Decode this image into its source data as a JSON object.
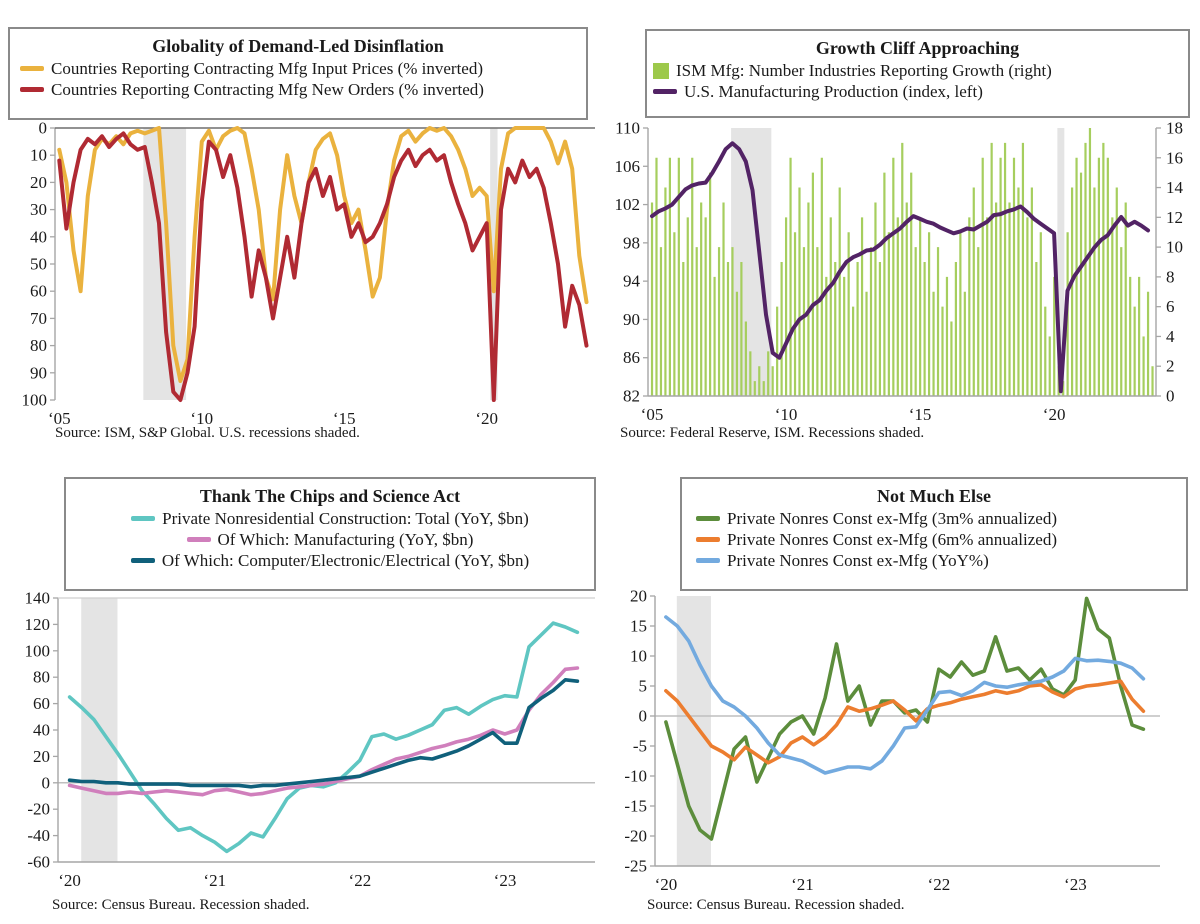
{
  "page": {
    "background": "#FFFFFF",
    "recession_shade_color": "#E4E4E4",
    "axis_color": "#A6A6A6",
    "zero_line_color": "#BFBFBF"
  },
  "chart_data": [
    {
      "type": "line",
      "title": "Globality of Demand-Led Disinflation",
      "source": "Source: ISM, S&P Global. U.S. recessions shaded.",
      "inverted_y": true,
      "xlim": [
        2004.85,
        2023.8
      ],
      "ylim": [
        0,
        100
      ],
      "yticks": [
        0,
        10,
        20,
        30,
        40,
        50,
        60,
        70,
        80,
        90,
        100
      ],
      "xticks": [
        {
          "x": 2005,
          "label": "‘05"
        },
        {
          "x": 2010,
          "label": "‘10"
        },
        {
          "x": 2015,
          "label": "‘15"
        },
        {
          "x": 2020,
          "label": "‘20"
        }
      ],
      "recessions": [
        [
          2007.95,
          2009.45
        ],
        [
          2020.12,
          2020.38
        ]
      ],
      "grid": false,
      "legend_position": "top",
      "legend": [
        {
          "label": "Countries Reporting Contracting Mfg Input Prices (% inverted)",
          "color": "#EAB23E",
          "swatch": "line"
        },
        {
          "label": "Countries Reporting Contracting Mfg New Orders (% inverted)",
          "color": "#B02A33",
          "swatch": "line"
        }
      ],
      "series": [
        {
          "name": "Contracting Mfg Input Prices (% inverted)",
          "type": "line",
          "color": "#EAB23E",
          "width": 4,
          "x_start": 2005.0,
          "x_step": 0.25,
          "values": [
            8,
            20,
            45,
            60,
            25,
            8,
            4,
            6,
            3,
            6,
            2,
            1,
            2,
            1,
            0,
            35,
            80,
            93,
            85,
            40,
            5,
            1,
            8,
            3,
            1,
            0,
            2,
            15,
            30,
            55,
            63,
            30,
            10,
            25,
            35,
            20,
            8,
            4,
            2,
            10,
            25,
            35,
            30,
            45,
            62,
            55,
            30,
            12,
            3,
            1,
            5,
            2,
            0,
            1,
            0,
            3,
            8,
            15,
            25,
            22,
            25,
            60,
            15,
            2,
            0,
            0,
            0,
            0,
            0,
            5,
            13,
            5,
            15,
            47,
            64
          ]
        },
        {
          "name": "Contracting Mfg New Orders (% inverted)",
          "type": "line",
          "color": "#B02A33",
          "width": 4,
          "x_start": 2005.0,
          "x_step": 0.25,
          "values": [
            12,
            37,
            20,
            8,
            4,
            6,
            3,
            7,
            4,
            2,
            6,
            8,
            7,
            20,
            35,
            75,
            97,
            100,
            90,
            73,
            27,
            5,
            8,
            18,
            10,
            22,
            40,
            62,
            45,
            55,
            70,
            55,
            40,
            55,
            35,
            20,
            15,
            25,
            18,
            30,
            28,
            40,
            35,
            42,
            40,
            35,
            28,
            18,
            12,
            8,
            14,
            10,
            8,
            12,
            10,
            20,
            28,
            35,
            45,
            40,
            35,
            100,
            30,
            15,
            20,
            12,
            18,
            15,
            22,
            35,
            50,
            73,
            58,
            65,
            80
          ]
        }
      ]
    },
    {
      "type": "bar+line",
      "title": "Growth Cliff Approaching",
      "source": "Source: Federal Reserve, ISM. Recessions shaded.",
      "inverted_y": false,
      "xlim": [
        2004.85,
        2023.8
      ],
      "ylim": [
        82,
        110
      ],
      "ylim_right": [
        0,
        18
      ],
      "yticks": [
        82,
        86,
        90,
        94,
        98,
        102,
        106,
        110
      ],
      "yticks_right": [
        0,
        2,
        4,
        6,
        8,
        10,
        12,
        14,
        16,
        18
      ],
      "xticks": [
        {
          "x": 2005,
          "label": "‘05"
        },
        {
          "x": 2010,
          "label": "‘10"
        },
        {
          "x": 2015,
          "label": "‘15"
        },
        {
          "x": 2020,
          "label": "‘20"
        }
      ],
      "recessions": [
        [
          2007.95,
          2009.45
        ],
        [
          2020.12,
          2020.38
        ]
      ],
      "grid": false,
      "legend_position": "top",
      "legend": [
        {
          "label": "ISM Mfg: Number Industries Reporting Growth (right)",
          "color": "#9DC94B",
          "swatch": "square"
        },
        {
          "label": "U.S. Manufacturing Production (index, left)",
          "color": "#522365",
          "swatch": "line"
        }
      ],
      "series": [
        {
          "name": "ISM Mfg: Number Industries Reporting Growth",
          "type": "bar",
          "axis": "right",
          "color": "#A6CE5E",
          "width": 2.2,
          "x_start": 2005.0,
          "x_step": 0.1667,
          "values": [
            13,
            16,
            10,
            14,
            16,
            11,
            16,
            9,
            12,
            16,
            10,
            13,
            12,
            15,
            8,
            10,
            13,
            9,
            10,
            7,
            9,
            5,
            3,
            1,
            2,
            1,
            3,
            2,
            6,
            9,
            12,
            16,
            11,
            14,
            10,
            13,
            15,
            10,
            16,
            8,
            12,
            9,
            14,
            8,
            11,
            6,
            9,
            12,
            7,
            10,
            13,
            9,
            15,
            11,
            16,
            12,
            17,
            13,
            15,
            10,
            12,
            9,
            11,
            7,
            10,
            6,
            8,
            5,
            9,
            11,
            7,
            12,
            14,
            10,
            16,
            12,
            17,
            13,
            16,
            17,
            13,
            16,
            14,
            17,
            12,
            14,
            9,
            11,
            6,
            4,
            8,
            2,
            1,
            11,
            14,
            16,
            15,
            17,
            18,
            14,
            16,
            17,
            16,
            12,
            14,
            10,
            13,
            8,
            6,
            8,
            4,
            7,
            2
          ]
        },
        {
          "name": "U.S. Manufacturing Production (index)",
          "type": "line",
          "axis": "left",
          "color": "#522365",
          "width": 4,
          "x_start": 2005.0,
          "x_step": 0.25,
          "values": [
            100.8,
            101.3,
            101.6,
            102,
            102.8,
            103.6,
            104,
            104.2,
            104.3,
            105.3,
            106.5,
            107.8,
            108.4,
            107.8,
            106.5,
            103.5,
            97,
            90.5,
            86.5,
            86,
            87.5,
            89,
            90,
            90.5,
            91.5,
            92,
            93,
            93.8,
            95,
            96,
            96.5,
            96.8,
            97.2,
            97.3,
            97.8,
            98.5,
            99,
            99.5,
            100.2,
            100.8,
            100.5,
            100.2,
            100,
            99.6,
            99.3,
            99,
            99.2,
            99.5,
            99.4,
            99.8,
            100.2,
            100.9,
            101,
            101.3,
            101.5,
            101.8,
            101.2,
            100.5,
            100,
            99.5,
            99,
            82.5,
            93,
            94.5,
            95.5,
            96.5,
            97.5,
            98.3,
            98.8,
            99.8,
            100.7,
            99.8,
            100.2,
            99.8,
            99.3
          ]
        }
      ]
    },
    {
      "type": "line",
      "title": "Thank The Chips and Science Act",
      "source": "Source: Census Bureau. Recession shaded.",
      "inverted_y": false,
      "xlim": [
        2019.92,
        2023.62
      ],
      "ylim": [
        -60,
        140
      ],
      "yticks": [
        -60,
        -40,
        -20,
        0,
        20,
        40,
        60,
        80,
        100,
        120,
        140
      ],
      "xticks": [
        {
          "x": 2020,
          "label": "‘20"
        },
        {
          "x": 2021,
          "label": "‘21"
        },
        {
          "x": 2022,
          "label": "‘22"
        },
        {
          "x": 2023,
          "label": "‘23"
        }
      ],
      "recessions": [
        [
          2020.08,
          2020.33
        ]
      ],
      "zero_line": true,
      "grid": false,
      "legend_position": "top",
      "legend": [
        {
          "label": "Private Nonresidential Construction: Total (YoY, $bn)",
          "color": "#5FC6C2",
          "swatch": "line"
        },
        {
          "label": "Of Which: Manufacturing (YoY, $bn)",
          "color": "#D07FBC",
          "swatch": "line"
        },
        {
          "label": "Of Which: Computer/Electronic/Electrical (YoY, $bn)",
          "color": "#10607B",
          "swatch": "line"
        }
      ],
      "series": [
        {
          "name": "Private Nonresidential Construction: Total",
          "type": "line",
          "color": "#5FC6C2",
          "width": 3.6,
          "x_start": 2020.0,
          "x_step": 0.0833,
          "values": [
            65,
            57,
            48,
            35,
            22,
            8,
            -6,
            -16,
            -27,
            -36,
            -34,
            -40,
            -45,
            -52,
            -46,
            -38,
            -41,
            -27,
            -12,
            -4,
            -2,
            -3,
            0,
            8,
            17,
            35,
            37,
            33,
            36,
            40,
            44,
            55,
            57,
            52,
            58,
            63,
            66,
            65,
            103,
            112,
            121,
            118,
            114
          ]
        },
        {
          "name": "Of Which: Manufacturing",
          "type": "line",
          "color": "#D07FBC",
          "width": 3.6,
          "x_start": 2020.0,
          "x_step": 0.0833,
          "values": [
            -2,
            -4,
            -6,
            -8,
            -8,
            -7,
            -8,
            -7,
            -6,
            -7,
            -8,
            -9,
            -6,
            -5,
            -7,
            -9,
            -8,
            -6,
            -4,
            -3,
            -2,
            -1,
            1,
            3,
            5,
            10,
            14,
            18,
            20,
            23,
            26,
            28,
            31,
            33,
            36,
            40,
            37,
            40,
            55,
            67,
            76,
            86,
            87
          ]
        },
        {
          "name": "Of Which: Computer/Electronic/Electrical",
          "type": "line",
          "color": "#10607B",
          "width": 3.6,
          "x_start": 2020.0,
          "x_step": 0.0833,
          "values": [
            2,
            1,
            1,
            0,
            0,
            -1,
            -1,
            -1,
            -1,
            -1,
            -2,
            -2,
            -2,
            -2,
            -2,
            -3,
            -2,
            -2,
            -1,
            0,
            1,
            2,
            3,
            4,
            5,
            8,
            11,
            14,
            17,
            19,
            18,
            21,
            24,
            28,
            33,
            38,
            30,
            30,
            57,
            64,
            70,
            78,
            77
          ]
        }
      ]
    },
    {
      "type": "line",
      "title": "Not Much Else",
      "source": "Source: Census Bureau. Recession shaded.",
      "inverted_y": false,
      "xlim": [
        2019.92,
        2023.62
      ],
      "ylim": [
        -25,
        20
      ],
      "yticks": [
        -25,
        -20,
        -15,
        -10,
        -5,
        0,
        5,
        10,
        15,
        20
      ],
      "xticks": [
        {
          "x": 2020,
          "label": "‘20"
        },
        {
          "x": 2021,
          "label": "‘21"
        },
        {
          "x": 2022,
          "label": "‘22"
        },
        {
          "x": 2023,
          "label": "‘23"
        }
      ],
      "recessions": [
        [
          2020.08,
          2020.33
        ]
      ],
      "zero_line": true,
      "grid": false,
      "legend_position": "top",
      "legend": [
        {
          "label": "Private Nonres Const ex-Mfg (3m% annualized)",
          "color": "#5C8D3C",
          "swatch": "line"
        },
        {
          "label": "Private Nonres Const ex-Mfg (6m% annualized)",
          "color": "#EC7D2F",
          "swatch": "line"
        },
        {
          "label": "Private Nonres Const ex-Mfg (YoY%)",
          "color": "#73AADF",
          "swatch": "line"
        }
      ],
      "series": [
        {
          "name": "Private Nonres Const ex-Mfg (3m% annualized)",
          "type": "line",
          "color": "#5C8D3C",
          "width": 3.6,
          "x_start": 2020.0,
          "x_step": 0.0833,
          "values": [
            -1,
            -8,
            -15,
            -19,
            -20.5,
            -13,
            -5.5,
            -3.5,
            -11,
            -7,
            -3,
            -1,
            0,
            -3,
            3,
            12,
            2.5,
            5,
            -1.5,
            2.5,
            2.5,
            0.5,
            1,
            -1,
            7.8,
            6.5,
            9,
            6.8,
            7.5,
            13.2,
            7.5,
            8,
            6,
            7.8,
            4.5,
            3.5,
            6,
            19.6,
            14.5,
            13,
            5,
            -1.5,
            -2.2
          ]
        },
        {
          "name": "Private Nonres Const ex-Mfg (6m% annualized)",
          "type": "line",
          "color": "#EC7D2F",
          "width": 3.6,
          "x_start": 2020.0,
          "x_step": 0.0833,
          "values": [
            4.2,
            2.5,
            0,
            -2.5,
            -5,
            -6,
            -7.3,
            -5.2,
            -6.5,
            -7.8,
            -6.8,
            -4.5,
            -3.5,
            -4.8,
            -3.5,
            -1.5,
            1.5,
            0.8,
            1.2,
            1.8,
            2.5,
            1,
            -0.8,
            1.2,
            1.8,
            2.2,
            2.8,
            3.2,
            3.6,
            4.2,
            3.8,
            4.2,
            5,
            5.2,
            4,
            3.2,
            4.5,
            5,
            5.2,
            5.5,
            5.8,
            2.8,
            0.8
          ]
        },
        {
          "name": "Private Nonres Const ex-Mfg (YoY%)",
          "type": "line",
          "color": "#73AADF",
          "width": 3.6,
          "x_start": 2020.0,
          "x_step": 0.0833,
          "values": [
            16.5,
            15,
            12.5,
            8.5,
            5,
            2.5,
            1.5,
            0,
            -2,
            -4.5,
            -6.5,
            -7,
            -7.5,
            -8.5,
            -9.5,
            -9,
            -8.5,
            -8.5,
            -8.8,
            -7.5,
            -5,
            -2,
            -1.8,
            1,
            3.9,
            4.1,
            3.4,
            4.2,
            5.6,
            5,
            4.8,
            5.2,
            5.5,
            5.8,
            6.5,
            7.5,
            9.6,
            9.2,
            9.3,
            9.1,
            8.8,
            8,
            6.2
          ]
        }
      ]
    }
  ]
}
